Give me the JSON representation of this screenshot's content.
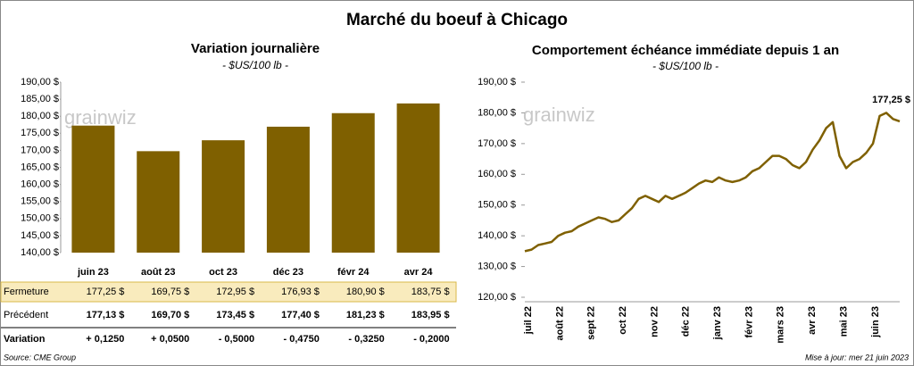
{
  "title": "Marché du boeuf à Chicago",
  "source": "Source: CME Group",
  "updated": "Mise à jour: mer 21 juin 2023",
  "chart_data": [
    {
      "type": "bar",
      "title": "Variation journalière",
      "subtitle": "- $US/100 lb -",
      "watermark": "grainwiz",
      "categories": [
        "juin 23",
        "août 23",
        "oct 23",
        "déc 23",
        "févr 24",
        "avr 24"
      ],
      "series": [
        {
          "name": "Fermeture",
          "values": [
            177.25,
            169.75,
            172.95,
            176.93,
            180.9,
            183.75
          ],
          "value_labels": [
            "177,25 $",
            "169,75 $",
            "172,95 $",
            "176,93 $",
            "180,90 $",
            "183,75 $"
          ]
        },
        {
          "name": "Précédent",
          "values": [
            177.13,
            169.7,
            173.45,
            177.4,
            181.23,
            183.95
          ],
          "value_labels": [
            "177,13 $",
            "169,70 $",
            "173,45 $",
            "177,40 $",
            "181,23 $",
            "183,95 $"
          ]
        },
        {
          "name": "Variation",
          "values": [
            0.125,
            0.05,
            -0.5,
            -0.475,
            -0.325,
            -0.2
          ],
          "value_labels": [
            "+ 0,1250",
            "+ 0,0500",
            "- 0,5000",
            "- 0,4750",
            "- 0,3250",
            "- 0,2000"
          ]
        }
      ],
      "color": "#7f6000",
      "highlight_color": "#f9ebbd",
      "positive_color": "#1f8f1f",
      "negative_color": "#e00000",
      "ylim": [
        140,
        190
      ],
      "yticks": [
        {
          "value": 140,
          "label": "140,00 $"
        },
        {
          "value": 145,
          "label": "145,00 $"
        },
        {
          "value": 150,
          "label": "150,00 $"
        },
        {
          "value": 155,
          "label": "155,00 $"
        },
        {
          "value": 160,
          "label": "160,00 $"
        },
        {
          "value": 165,
          "label": "165,00 $"
        },
        {
          "value": 170,
          "label": "170,00 $"
        },
        {
          "value": 175,
          "label": "175,00 $"
        },
        {
          "value": 180,
          "label": "180,00 $"
        },
        {
          "value": 185,
          "label": "185,00 $"
        },
        {
          "value": 190,
          "label": "190,00 $"
        }
      ]
    },
    {
      "type": "line",
      "title": "Comportement  échéance immédiate depuis 1 an",
      "subtitle": "- $US/100 lb -",
      "watermark": "grainwiz",
      "x_labels": [
        "juil 22",
        "août 22",
        "sept 22",
        "oct 22",
        "nov 22",
        "déc 22",
        "janv 23",
        "févr 23",
        "mars 23",
        "avr 23",
        "mai 23",
        "juin 23"
      ],
      "values": [
        135,
        135.5,
        137,
        137.5,
        138,
        140,
        141,
        141.5,
        143,
        144,
        145,
        146,
        145.5,
        144.5,
        145,
        147,
        149,
        152,
        153,
        152,
        151,
        153,
        152,
        153,
        154,
        155.5,
        157,
        158,
        157.5,
        159,
        158,
        157.5,
        158,
        159,
        161,
        162,
        164,
        166,
        166,
        165,
        163,
        162,
        164,
        168,
        171,
        175,
        177,
        166,
        162,
        164,
        165,
        167,
        170,
        179,
        180,
        178,
        177.25
      ],
      "last_value_label": "177,25 $",
      "color": "#7f6000",
      "ylim": [
        120,
        190
      ],
      "yticks": [
        {
          "value": 120,
          "label": "120,00 $"
        },
        {
          "value": 130,
          "label": "130,00 $"
        },
        {
          "value": 140,
          "label": "140,00 $"
        },
        {
          "value": 150,
          "label": "150,00 $"
        },
        {
          "value": 160,
          "label": "160,00 $"
        },
        {
          "value": 170,
          "label": "170,00 $"
        },
        {
          "value": 180,
          "label": "180,00 $"
        },
        {
          "value": 190,
          "label": "190,00 $"
        }
      ]
    }
  ]
}
